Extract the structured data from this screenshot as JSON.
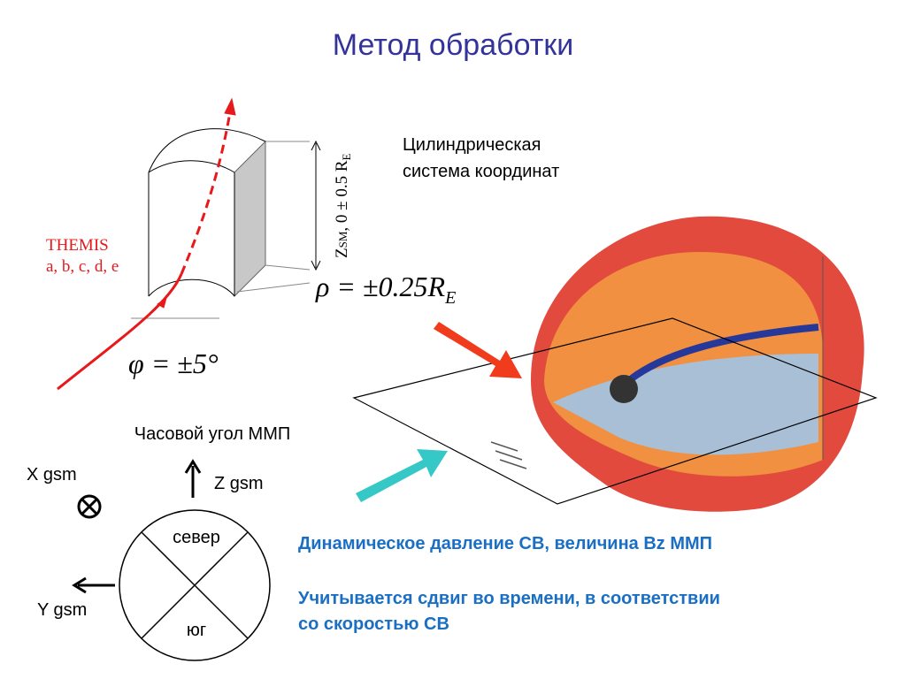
{
  "title": "Метод обработки",
  "coordinate_note": {
    "lines": [
      "Цилиндрическая",
      "система координат"
    ]
  },
  "cylinder": {
    "spacecraft": "THEMIS",
    "probes": "a, b, c, d, e",
    "z_label": {
      "symbol": "Z",
      "subscript": "SM",
      "range": ", 0 ± 0.5 R",
      "unit": "E"
    },
    "rho": {
      "text": "ρ = ±0.25R",
      "subscript": "E"
    },
    "phi": "φ = ±5°"
  },
  "imf": {
    "title": "Часовой угол ММП",
    "x_axis": "X gsm",
    "z_axis": "Z gsm",
    "y_axis": "Y gsm",
    "north": "север",
    "south": "юг"
  },
  "notes": {
    "pressure": "Динамическое давление СВ, величина Bz ММП",
    "shift": [
      "Учитывается сдвиг во времени, в соответствии",
      "со скоростью СВ"
    ]
  }
}
